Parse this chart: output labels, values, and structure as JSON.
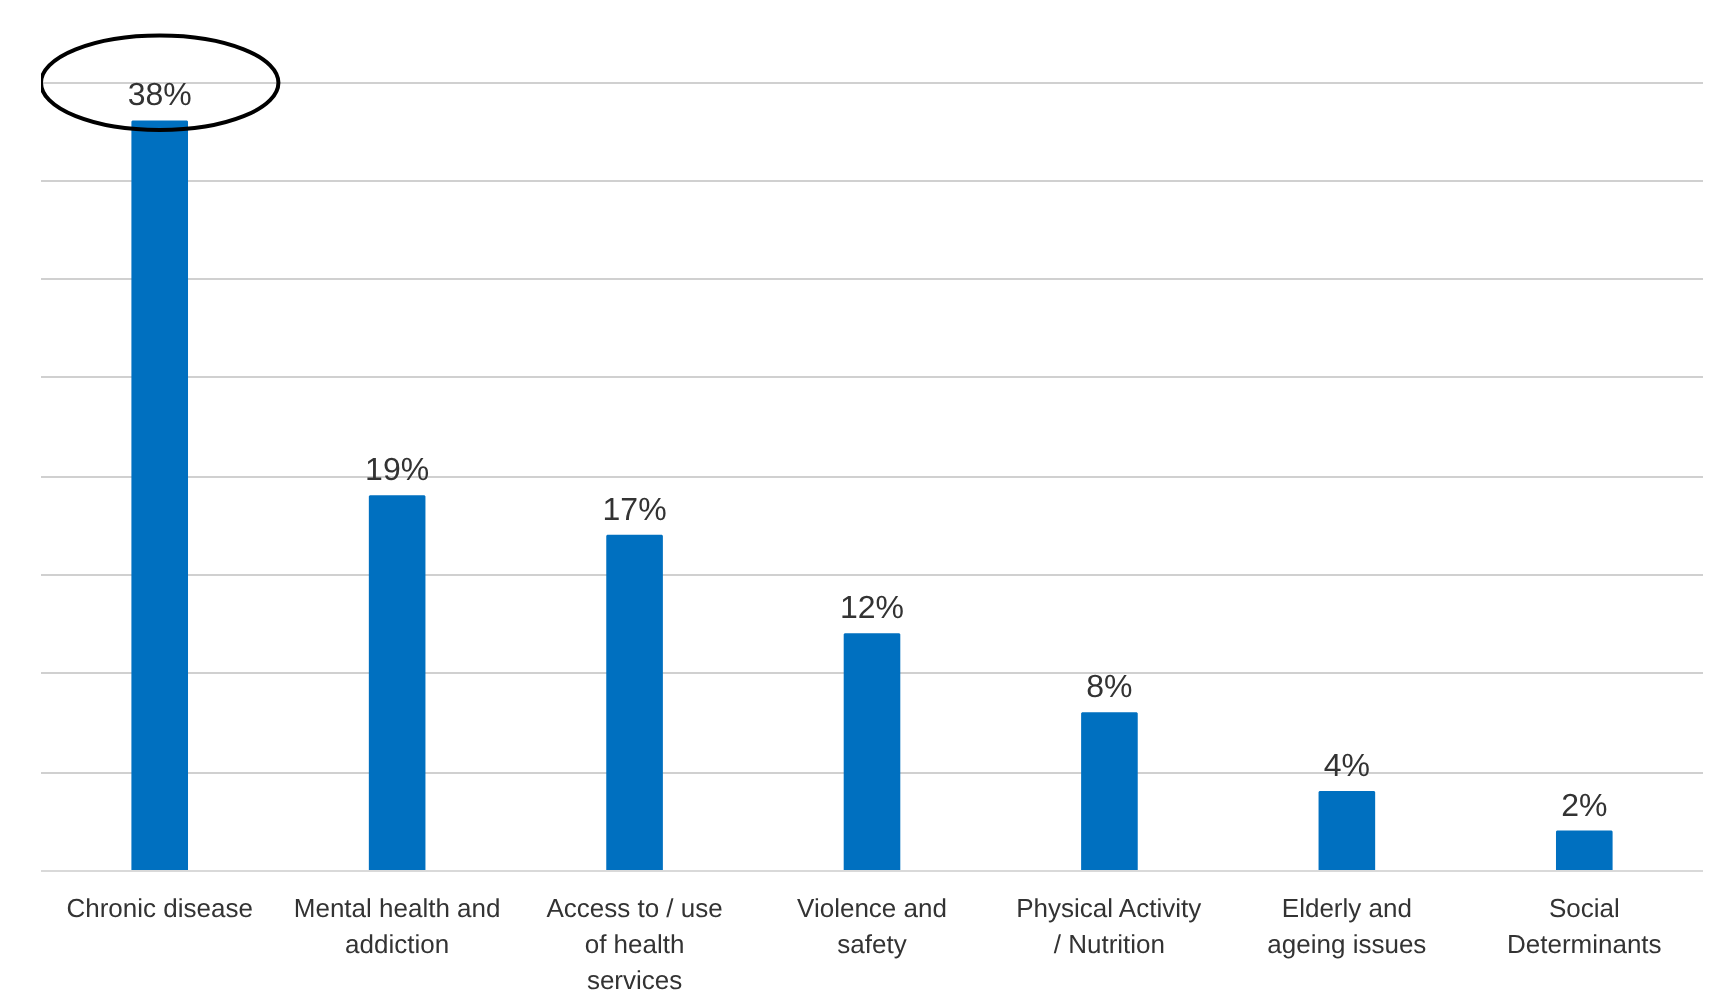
{
  "chart_data": {
    "type": "bar",
    "categories": [
      "Chronic disease",
      "Mental health and addiction",
      "Access to / use of health services",
      "Violence and safety",
      "Physical Activity / Nutrition",
      "Elderly and ageing issues",
      "Social Determinants"
    ],
    "values": [
      38,
      19,
      17,
      12,
      8,
      4,
      2
    ],
    "value_labels": [
      "38%",
      "19%",
      "17%",
      "12%",
      "8%",
      "4%",
      "2%"
    ],
    "color": "#0070c0",
    "yticks": [
      {
        "value": 0,
        "label": null
      },
      {
        "value": 5,
        "label": null
      },
      {
        "value": 10,
        "label": null
      },
      {
        "value": 15,
        "label": null
      },
      {
        "value": 20,
        "label": null
      },
      {
        "value": 25,
        "label": null
      },
      {
        "value": 30,
        "label": null
      },
      {
        "value": 35,
        "label": null
      },
      {
        "value": 40,
        "label": null
      }
    ],
    "grid": "y",
    "tick_labels": "x"
  }
}
